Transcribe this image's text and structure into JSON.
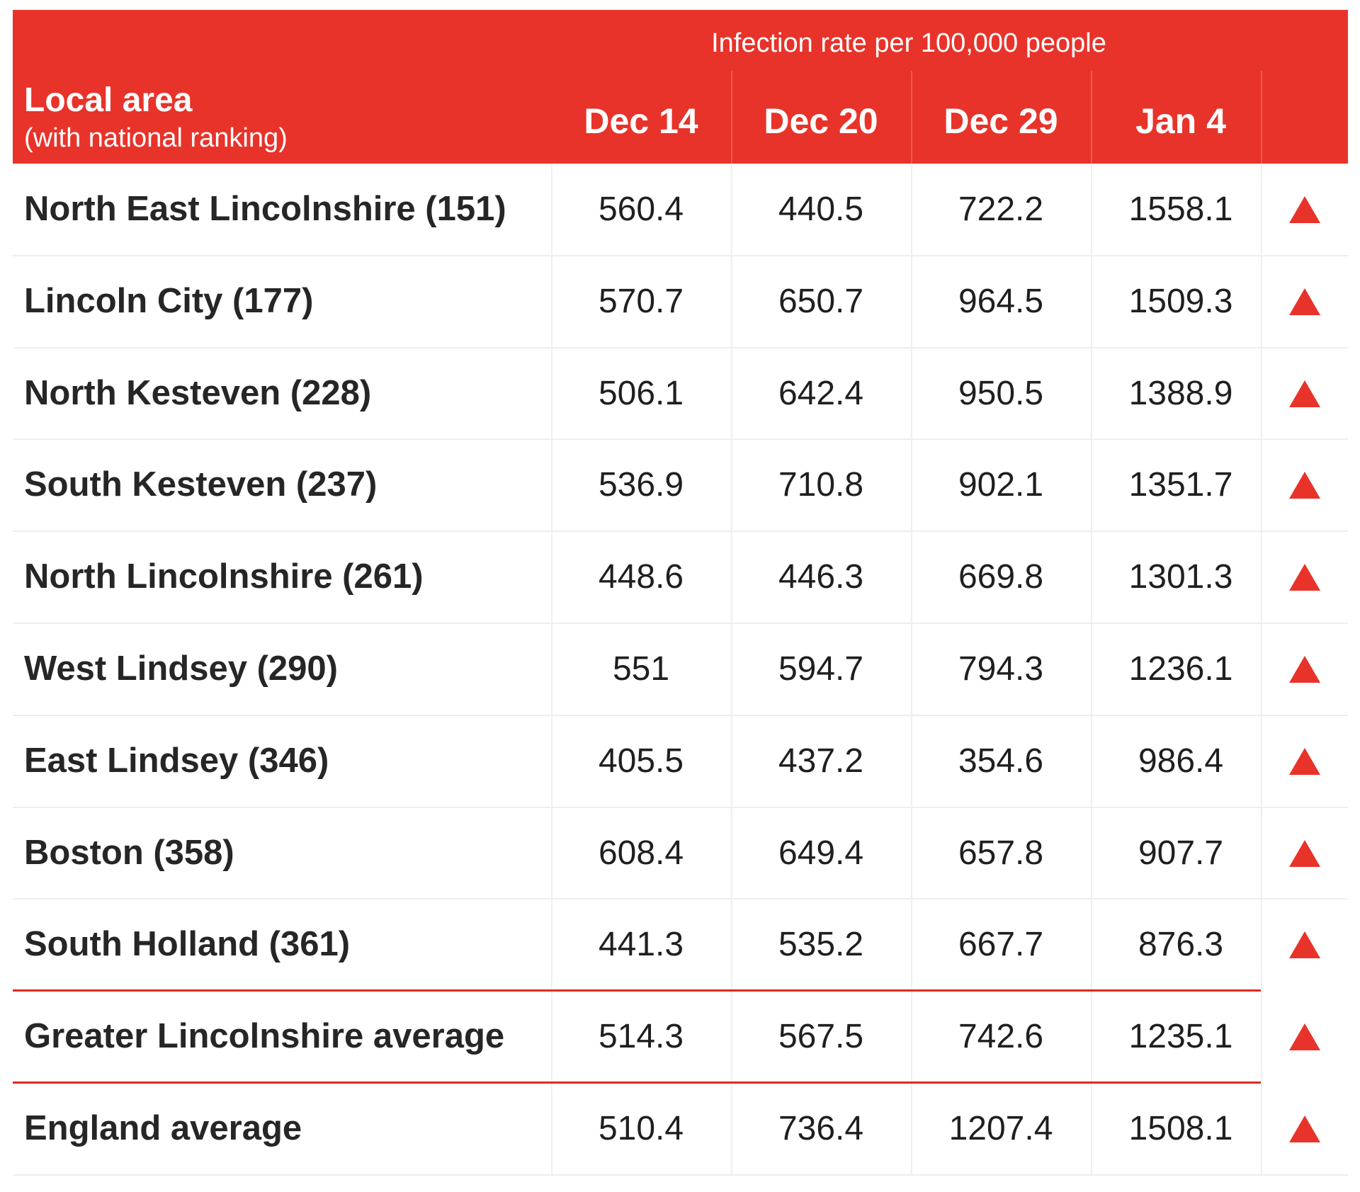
{
  "chart_data": {
    "type": "table",
    "header": {
      "group_label": "Infection rate per 100,000 people",
      "area_title": "Local area",
      "area_subtitle": "(with national ranking)"
    },
    "columns": [
      "Dec 14",
      "Dec 20",
      "Dec 29",
      "Jan 4"
    ],
    "trend_color": "#e8332a",
    "header_color": "#e8332a",
    "rows": [
      {
        "name": "North East Lincolnshire (151)",
        "values": [
          "560.4",
          "440.5",
          "722.2",
          "1558.1"
        ],
        "trend": "up-triangle"
      },
      {
        "name": "Lincoln City (177)",
        "values": [
          "570.7",
          "650.7",
          "964.5",
          "1509.3"
        ],
        "trend": "up-triangle"
      },
      {
        "name": "North Kesteven (228)",
        "values": [
          "506.1",
          "642.4",
          "950.5",
          "1388.9"
        ],
        "trend": "up-triangle"
      },
      {
        "name": "South Kesteven (237)",
        "values": [
          "536.9",
          "710.8",
          "902.1",
          "1351.7"
        ],
        "trend": "up-triangle"
      },
      {
        "name": "North Lincolnshire (261)",
        "values": [
          "448.6",
          "446.3",
          "669.8",
          "1301.3"
        ],
        "trend": "up-triangle"
      },
      {
        "name": "West Lindsey (290)",
        "values": [
          "551",
          "594.7",
          "794.3",
          "1236.1"
        ],
        "trend": "up-triangle"
      },
      {
        "name": "East Lindsey (346)",
        "values": [
          "405.5",
          "437.2",
          "354.6",
          "986.4"
        ],
        "trend": "up-triangle"
      },
      {
        "name": "Boston (358)",
        "values": [
          "608.4",
          "649.4",
          "657.8",
          "907.7"
        ],
        "trend": "up-triangle"
      },
      {
        "name": "South Holland (361)",
        "values": [
          "441.3",
          "535.2",
          "667.7",
          "876.3"
        ],
        "trend": "up-triangle"
      },
      {
        "name": "Greater Lincolnshire average",
        "values": [
          "514.3",
          "567.5",
          "742.6",
          "1235.1"
        ],
        "trend": "up-triangle"
      },
      {
        "name": "England average",
        "values": [
          "510.4",
          "736.4",
          "1207.4",
          "1508.1"
        ],
        "trend": "up-triangle"
      }
    ]
  }
}
